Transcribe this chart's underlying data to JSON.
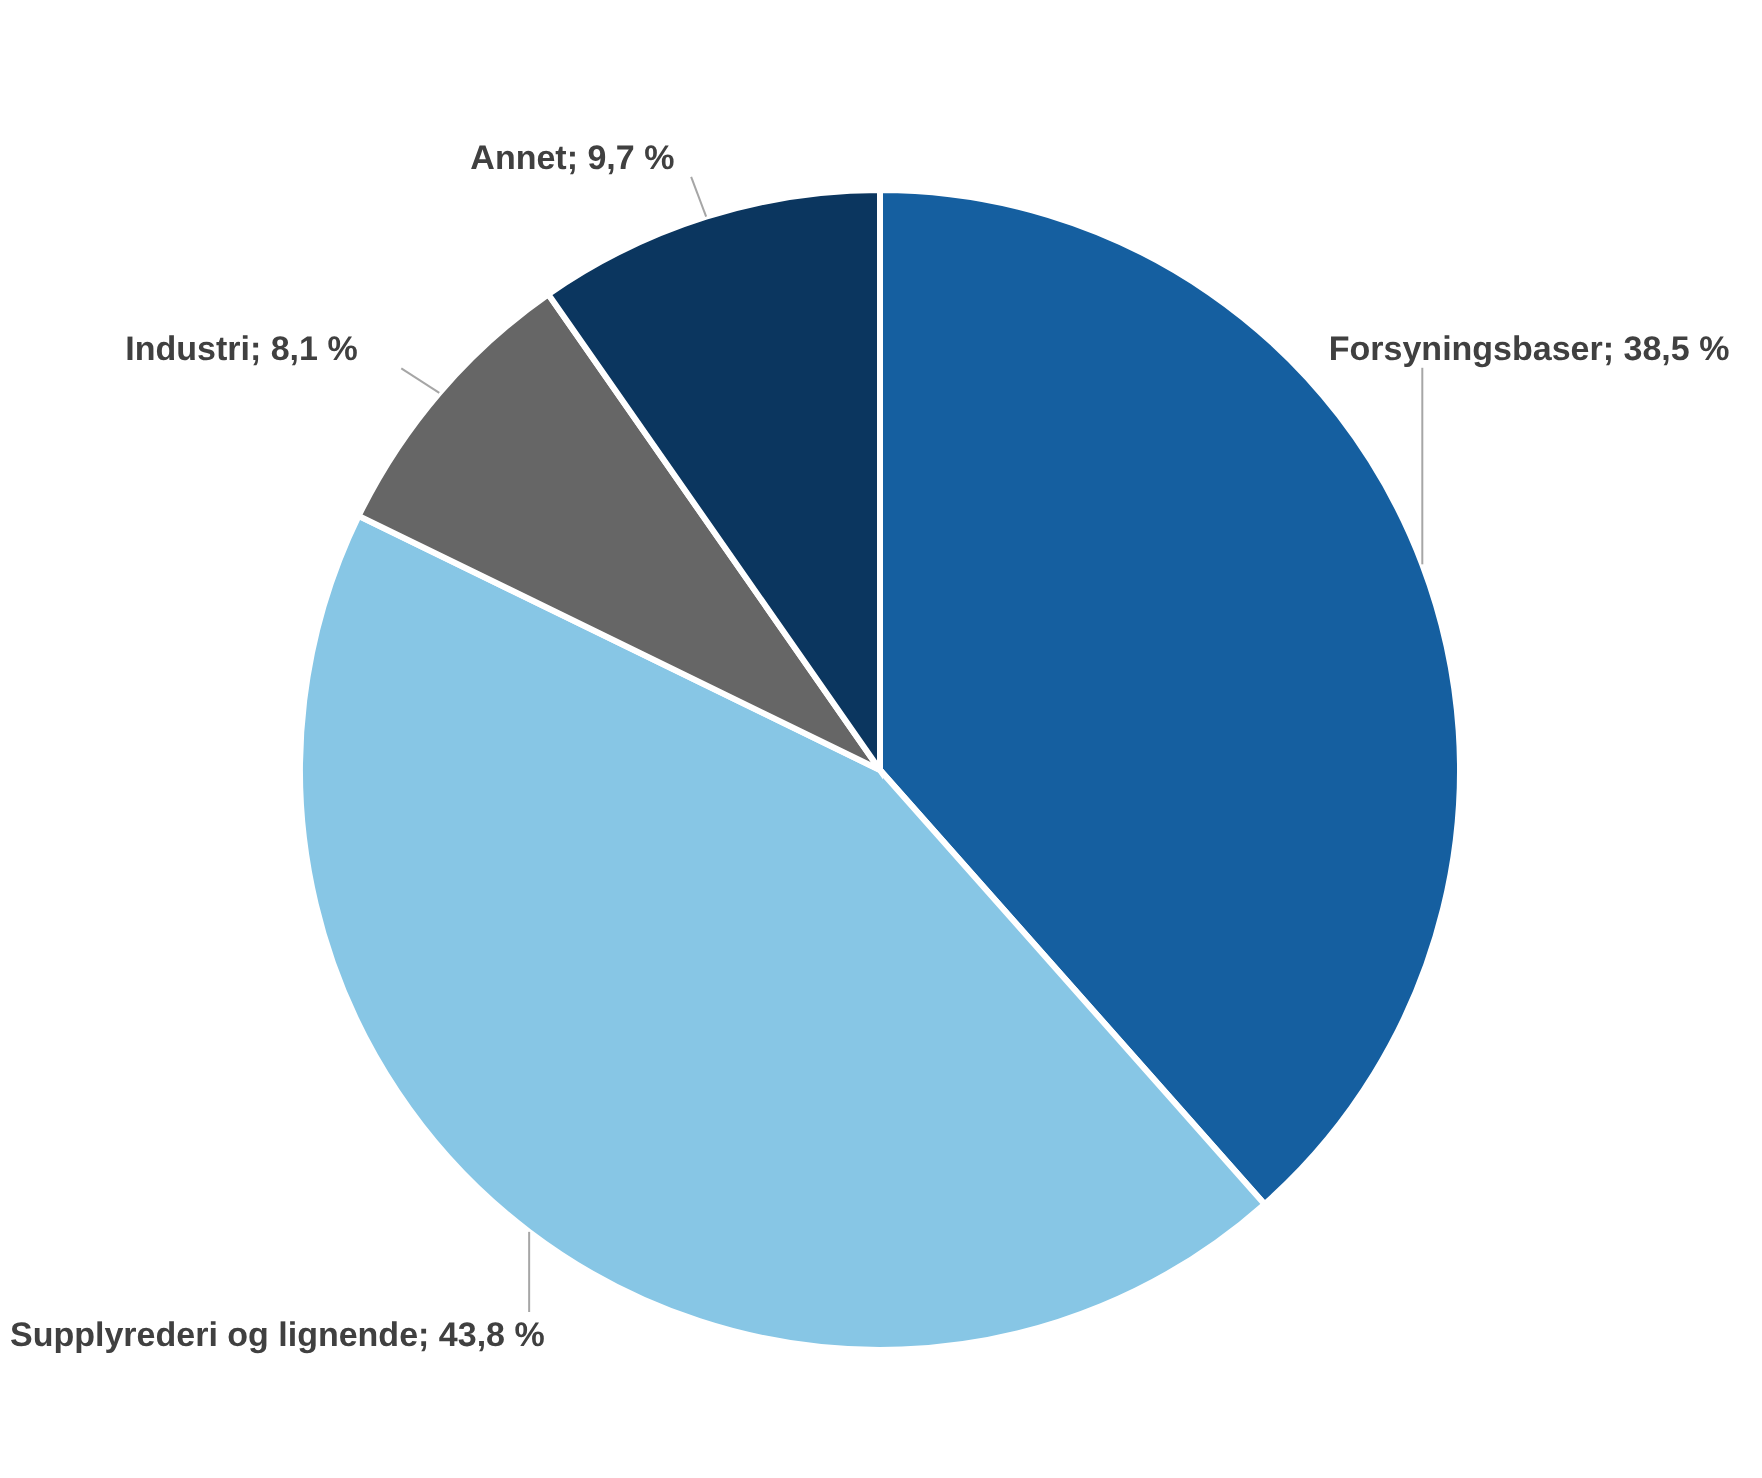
{
  "chart_data": {
    "type": "pie",
    "categories": [
      "Forsyningsbaser",
      "Supplyrederi og lignende",
      "Industri",
      "Annet"
    ],
    "values": [
      38.5,
      43.8,
      8.1,
      9.7
    ],
    "value_labels": [
      "38,5 %",
      "43,8 %",
      "8,1 %",
      "9,7 %"
    ],
    "colors": [
      "#155fa0",
      "#87c6e5",
      "#666666",
      "#0b365f"
    ]
  }
}
